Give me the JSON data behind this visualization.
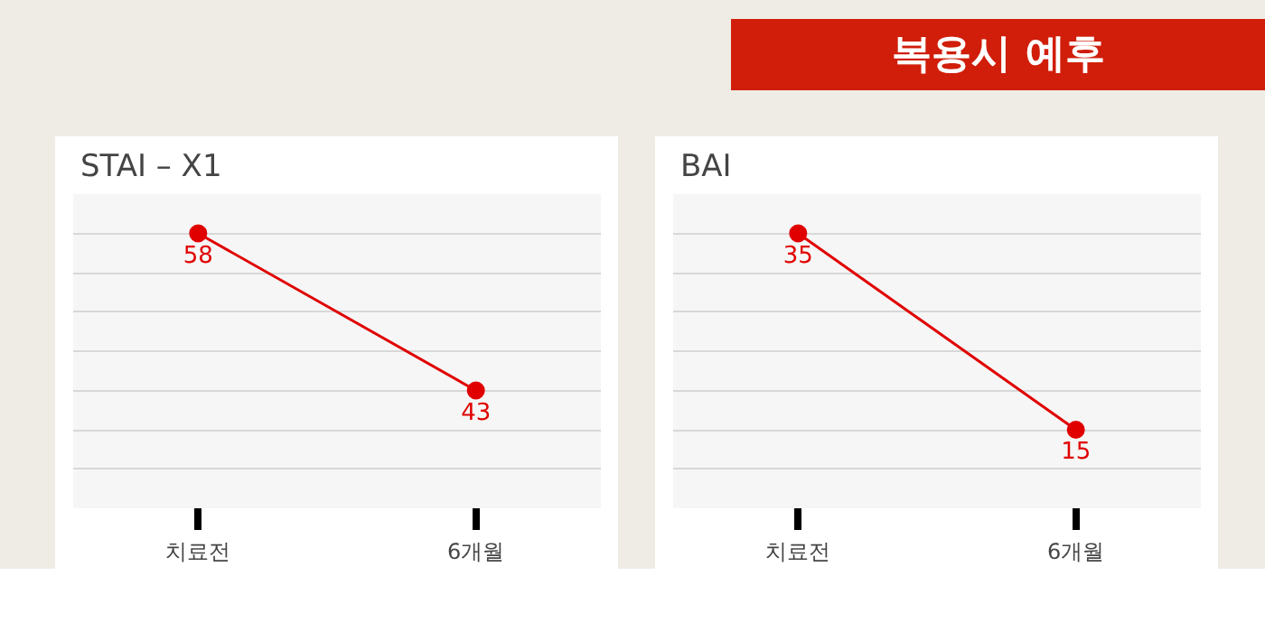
{
  "chart_data": [
    {
      "type": "line",
      "title": "STAI – X1",
      "annotations": [
        "복용시 예후"
      ],
      "categories": [
        "치료전",
        "6개월"
      ],
      "series": [
        {
          "color": "#e00000",
          "values": [
            58,
            43
          ]
        }
      ],
      "ylim": [
        31.75,
        61.75
      ],
      "yticks": [
        {
          "value": 31.75,
          "label": null
        },
        {
          "value": 35.5,
          "label": null
        },
        {
          "value": 39.25,
          "label": null
        },
        {
          "value": 43,
          "label": null
        },
        {
          "value": 46.75,
          "label": null
        },
        {
          "value": 50.5,
          "label": null
        },
        {
          "value": 54.25,
          "label": null
        },
        {
          "value": 58,
          "label": null
        },
        {
          "value": 61.75,
          "label": null
        }
      ],
      "grid": "y",
      "data_labels": true,
      "marker": "circle",
      "line_style": "solid"
    },
    {
      "type": "line",
      "title": "BAI",
      "categories": [
        "치료전",
        "6개월"
      ],
      "series": [
        {
          "color": "#e00000",
          "values": [
            35,
            15
          ]
        }
      ],
      "ylim": [
        7,
        39
      ],
      "yticks": [
        {
          "value": 7,
          "label": null
        },
        {
          "value": 11,
          "label": null
        },
        {
          "value": 15,
          "label": null
        },
        {
          "value": 19,
          "label": null
        },
        {
          "value": 23,
          "label": null
        },
        {
          "value": 27,
          "label": null
        },
        {
          "value": 31,
          "label": null
        },
        {
          "value": 35,
          "label": null
        },
        {
          "value": 39,
          "label": null
        }
      ],
      "grid": "y",
      "data_labels": true,
      "marker": "circle",
      "line_style": "solid"
    }
  ]
}
